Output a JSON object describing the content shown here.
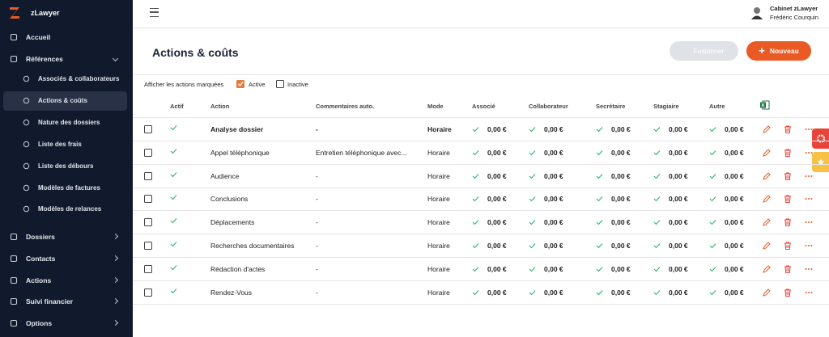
{
  "sidebar": {
    "brand": "zLawyer",
    "items_top": [
      {
        "label": "Accueil"
      },
      {
        "label": "Références"
      }
    ],
    "subitems": [
      {
        "label": "Associés & collaborateurs"
      },
      {
        "label": "Actions & coûts"
      },
      {
        "label": "Nature des dossiers"
      },
      {
        "label": "Liste des frais"
      },
      {
        "label": "Liste des débours"
      },
      {
        "label": "Modèles de factures"
      },
      {
        "label": "Modèles de relances"
      }
    ],
    "items_bottom": [
      {
        "label": "Dossiers"
      },
      {
        "label": "Contacts"
      },
      {
        "label": "Actions"
      },
      {
        "label": "Suivi financier"
      },
      {
        "label": "Options"
      }
    ]
  },
  "header": {
    "company": "Cabinet zLawyer",
    "user": "Frédéric Courquin"
  },
  "page": {
    "title": "Actions & coûts",
    "merge_button": "Fusionner",
    "new_button": "Nouveau"
  },
  "filter": {
    "label": "Afficher les actions marquées",
    "options": [
      "Active",
      "Inactive"
    ]
  },
  "table": {
    "columns": [
      "Actif",
      "Action",
      "Commentaires auto.",
      "Mode",
      "Associé",
      "Collaborateur",
      "Secrétaire",
      "Stagiaire",
      "Autre"
    ],
    "rows": [
      {
        "action": "Analyse dossier",
        "comment": "-",
        "mode": "Horaire",
        "amounts": [
          "0,00 €",
          "0,00 €",
          "0,00 €",
          "0,00 €",
          "0,00 €"
        ]
      },
      {
        "action": "Appel téléphonique",
        "comment": "Entretien téléphonique avec...",
        "mode": "Horaire",
        "amounts": [
          "0,00 €",
          "0,00 €",
          "0,00 €",
          "0,00 €",
          "0,00 €"
        ]
      },
      {
        "action": "Audience",
        "comment": "-",
        "mode": "Horaire",
        "amounts": [
          "0,00 €",
          "0,00 €",
          "0,00 €",
          "0,00 €",
          "0,00 €"
        ]
      },
      {
        "action": "Conclusions",
        "comment": "-",
        "mode": "Horaire",
        "amounts": [
          "0,00 €",
          "0,00 €",
          "0,00 €",
          "0,00 €",
          "0,00 €"
        ]
      },
      {
        "action": "Déplacements",
        "comment": "-",
        "mode": "Horaire",
        "amounts": [
          "0,00 €",
          "0,00 €",
          "0,00 €",
          "0,00 €",
          "0,00 €"
        ]
      },
      {
        "action": "Recherches documentaires",
        "comment": "-",
        "mode": "Horaire",
        "amounts": [
          "0,00 €",
          "0,00 €",
          "0,00 €",
          "0,00 €",
          "0,00 €"
        ]
      },
      {
        "action": "Rédaction d'actes",
        "comment": "-",
        "mode": "Horaire",
        "amounts": [
          "0,00 €",
          "0,00 €",
          "0,00 €",
          "0,00 €",
          "0,00 €"
        ]
      },
      {
        "action": "Rendez-Vous",
        "comment": "-",
        "mode": "Horaire",
        "amounts": [
          "0,00 €",
          "0,00 €",
          "0,00 €",
          "0,00 €",
          "0,00 €"
        ]
      }
    ]
  }
}
